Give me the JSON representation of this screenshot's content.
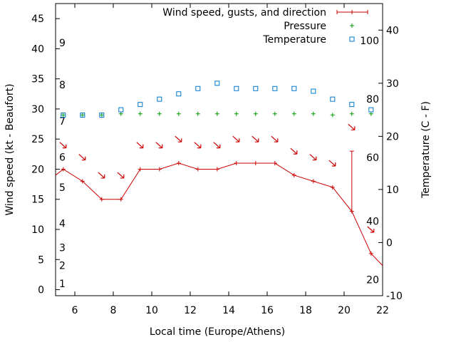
{
  "chart_data": {
    "type": "line",
    "xlabel": "Local time (Europe/Athens)",
    "ylabel": "Wind speed (kt - Beaufort)",
    "y2label": "Temperature (C - F)",
    "xlim": [
      5,
      22
    ],
    "ylim": [
      -1,
      47.5
    ],
    "y2lim": [
      -10,
      45
    ],
    "x_ticks": [
      6,
      8,
      10,
      12,
      14,
      16,
      18,
      20,
      22
    ],
    "y_ticks": [
      0,
      5,
      10,
      15,
      20,
      25,
      30,
      35,
      40,
      45
    ],
    "y2_ticks": [
      -10,
      0,
      10,
      20,
      30,
      40
    ],
    "beaufort_labels": [
      {
        "label": "1",
        "y": 1
      },
      {
        "label": "2",
        "y": 4
      },
      {
        "label": "3",
        "y": 7
      },
      {
        "label": "4",
        "y": 11
      },
      {
        "label": "5",
        "y": 17
      },
      {
        "label": "6",
        "y": 22
      },
      {
        "label": "7",
        "y": 28
      },
      {
        "label": "8",
        "y": 34
      },
      {
        "label": "9",
        "y": 41
      }
    ],
    "fahrenheit_labels": [
      {
        "label": "20",
        "y2": -7
      },
      {
        "label": "40",
        "y2": 4
      },
      {
        "label": "60",
        "y2": 16
      },
      {
        "label": "80",
        "y2": 27
      },
      {
        "label": "100",
        "y2": 38
      }
    ],
    "legend_position": "top-right",
    "colors": {
      "wind": "#cc0000",
      "pressure": "#009900",
      "temperature": "#0077cc"
    },
    "series": [
      {
        "name": "Wind speed, gusts, and direction",
        "x": [
          5.0,
          5.4,
          6.4,
          7.4,
          8.4,
          9.4,
          10.4,
          11.4,
          12.4,
          13.4,
          14.4,
          15.4,
          16.4,
          17.4,
          18.4,
          19.4,
          20.4,
          21.4,
          22.0
        ],
        "y": [
          19.0,
          20,
          18,
          15,
          15,
          20,
          20,
          21,
          20,
          20,
          21,
          21,
          21,
          19,
          18,
          17,
          13,
          6,
          4
        ],
        "gusts": [
          {
            "x": 20.4,
            "from": 13,
            "to": 23
          }
        ],
        "direction_arrows": [
          {
            "x": 5.4,
            "y": 24
          },
          {
            "x": 6.4,
            "y": 22
          },
          {
            "x": 7.4,
            "y": 19
          },
          {
            "x": 8.4,
            "y": 19
          },
          {
            "x": 9.4,
            "y": 24
          },
          {
            "x": 10.4,
            "y": 24
          },
          {
            "x": 11.4,
            "y": 25
          },
          {
            "x": 12.4,
            "y": 24
          },
          {
            "x": 13.4,
            "y": 24
          },
          {
            "x": 14.4,
            "y": 25
          },
          {
            "x": 15.4,
            "y": 25
          },
          {
            "x": 16.4,
            "y": 25
          },
          {
            "x": 17.4,
            "y": 23
          },
          {
            "x": 18.4,
            "y": 22
          },
          {
            "x": 19.4,
            "y": 21
          },
          {
            "x": 20.4,
            "y": 27
          },
          {
            "x": 21.4,
            "y": 10
          }
        ]
      },
      {
        "name": "Pressure",
        "x": [
          5.4,
          6.4,
          7.4,
          8.4,
          9.4,
          10.4,
          11.4,
          12.4,
          13.4,
          14.4,
          15.4,
          16.4,
          17.4,
          18.4,
          19.4,
          20.4,
          21.4
        ],
        "y": [
          29,
          29,
          29,
          29.2,
          29.2,
          29.2,
          29.2,
          29.2,
          29.2,
          29.2,
          29.2,
          29.2,
          29.2,
          29.2,
          29,
          29.2,
          29.2
        ]
      },
      {
        "name": "Temperature",
        "x": [
          5.4,
          6.4,
          7.4,
          8.4,
          9.4,
          10.4,
          11.4,
          12.4,
          13.4,
          14.4,
          15.4,
          16.4,
          17.4,
          18.4,
          19.4,
          20.4,
          21.4
        ],
        "y2": [
          24,
          24,
          24,
          25,
          26,
          27,
          28,
          29,
          30,
          29,
          29,
          29,
          29,
          28.5,
          27,
          26,
          25
        ]
      }
    ]
  }
}
